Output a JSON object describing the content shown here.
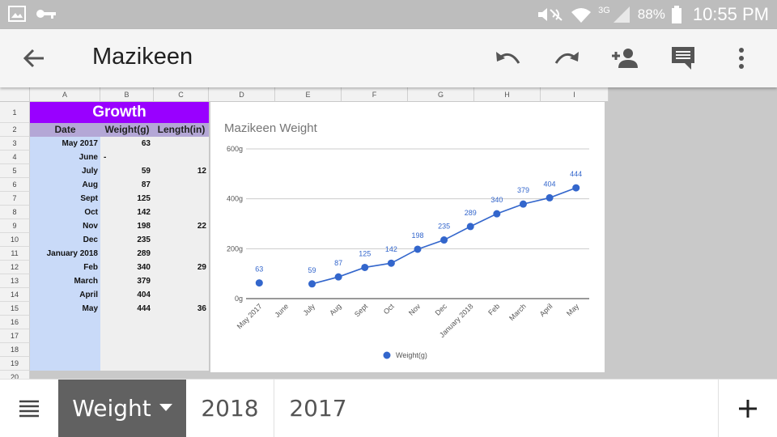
{
  "status_bar": {
    "battery": "88%",
    "network": "3G",
    "time": "10:55 PM",
    "icons": [
      "image-icon",
      "key-icon",
      "mute-icon",
      "wifi-icon",
      "signal-icon",
      "battery-icon"
    ]
  },
  "app_bar": {
    "title": "Mazikeen",
    "icons": [
      "back-arrow-icon",
      "undo-icon",
      "redo-icon",
      "add-person-icon",
      "comment-icon",
      "more-vert-icon"
    ]
  },
  "sheet": {
    "columns": [
      "A",
      "B",
      "C",
      "D",
      "E",
      "F",
      "G",
      "H",
      "I"
    ],
    "rows": [
      "1",
      "2",
      "3",
      "4",
      "5",
      "6",
      "7",
      "8",
      "9",
      "10",
      "11",
      "12",
      "13",
      "14",
      "15",
      "16",
      "17",
      "18",
      "19",
      "20"
    ],
    "title": "Growth",
    "headers": [
      "Date",
      "Weight(g)",
      "Length(in)"
    ],
    "data": [
      {
        "date": "May 2017",
        "weight": "63",
        "length": ""
      },
      {
        "date": "June",
        "weight": "-",
        "length": ""
      },
      {
        "date": "July",
        "weight": "59",
        "length": "12"
      },
      {
        "date": "Aug",
        "weight": "87",
        "length": ""
      },
      {
        "date": "Sept",
        "weight": "125",
        "length": ""
      },
      {
        "date": "Oct",
        "weight": "142",
        "length": ""
      },
      {
        "date": "Nov",
        "weight": "198",
        "length": "22"
      },
      {
        "date": "Dec",
        "weight": "235",
        "length": ""
      },
      {
        "date": "January 2018",
        "weight": "289",
        "length": ""
      },
      {
        "date": "Feb",
        "weight": "340",
        "length": "29"
      },
      {
        "date": "March",
        "weight": "379",
        "length": ""
      },
      {
        "date": "April",
        "weight": "404",
        "length": ""
      },
      {
        "date": "May",
        "weight": "444",
        "length": "36"
      },
      {
        "date": "",
        "weight": "",
        "length": ""
      },
      {
        "date": "",
        "weight": "",
        "length": ""
      },
      {
        "date": "",
        "weight": "",
        "length": ""
      },
      {
        "date": "",
        "weight": "",
        "length": ""
      }
    ],
    "colors": {
      "title_bg": "#9900ff",
      "header_bg": "#b4a7d6",
      "date_col_bg": "#c9daf8",
      "series": "#3366cc"
    }
  },
  "chart_data": {
    "type": "line",
    "title": "Mazikeen Weight",
    "categories": [
      "May 2017",
      "June",
      "July",
      "Aug",
      "Sept",
      "Oct",
      "Nov",
      "Dec",
      "January 2018",
      "Feb",
      "March",
      "April",
      "May"
    ],
    "series": [
      {
        "name": "Weight(g)",
        "values": [
          63,
          null,
          59,
          87,
          125,
          142,
          198,
          235,
          289,
          340,
          379,
          404,
          444
        ]
      }
    ],
    "y_ticks": [
      "0g",
      "200g",
      "400g",
      "600g"
    ],
    "ylim": [
      0,
      600
    ],
    "grid": true,
    "legend": "bottom",
    "data_labels": true
  },
  "tabs": {
    "items": [
      {
        "label": "Weight",
        "active": true
      },
      {
        "label": "2018",
        "active": false
      },
      {
        "label": "2017",
        "active": false
      }
    ],
    "icons": [
      "sheets-list-icon",
      "add-sheet-icon"
    ]
  }
}
